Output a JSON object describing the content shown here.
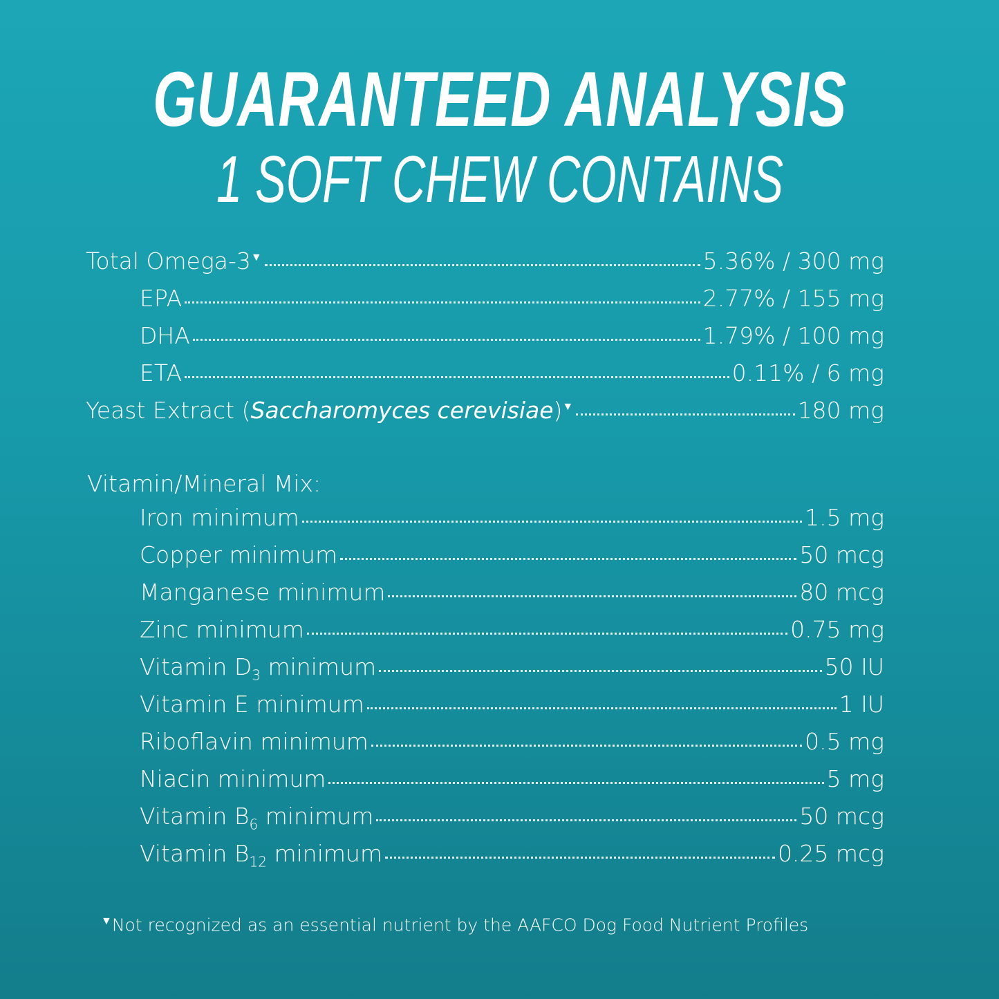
{
  "title": "GUARANTEED ANALYSIS",
  "subtitle": "1 SOFT CHEW CONTAINS",
  "colors": {
    "background_top": "#1ca6b6",
    "background_bottom": "#137d8b",
    "text": "#ffffff"
  },
  "marker_symbol": "▼",
  "group1": [
    {
      "label": "Total Omega-3",
      "marker": true,
      "value": "5.36% / 300 mg",
      "indent": false
    },
    {
      "label": "EPA",
      "value": "2.77% / 155 mg",
      "indent": true
    },
    {
      "label": "DHA",
      "value": "1.79% / 100 mg",
      "indent": true
    },
    {
      "label": "ETA",
      "value": "0.11% / 6 mg",
      "indent": true
    },
    {
      "label": "Yeast Extract (",
      "italic": "Saccharomyces cerevisiae",
      "label_after": ")",
      "marker": true,
      "value": "180 mg",
      "indent": false
    }
  ],
  "mix_heading": "Vitamin/Mineral Mix:",
  "group2": [
    {
      "label": "Iron minimum",
      "value": "1.5 mg",
      "indent": true
    },
    {
      "label": "Copper minimum",
      "value": "50 mcg",
      "indent": true
    },
    {
      "label": "Manganese minimum",
      "value": "80 mcg",
      "indent": true
    },
    {
      "label": "Zinc minimum",
      "value": "0.75 mg",
      "indent": true
    },
    {
      "label": "Vitamin D",
      "sub": "3",
      "label_after": " minimum",
      "value": "50 IU",
      "indent": true
    },
    {
      "label": "Vitamin E minimum",
      "value": "1 IU",
      "indent": true
    },
    {
      "label": "Riboflavin minimum",
      "value": "0.5 mg",
      "indent": true
    },
    {
      "label": "Niacin minimum",
      "value": "5 mg",
      "indent": true
    },
    {
      "label": "Vitamin B",
      "sub": "6",
      "label_after": " minimum",
      "value": "50 mcg",
      "indent": true
    },
    {
      "label": "Vitamin B",
      "sub": "12",
      "label_after": " minimum",
      "value": "0.25 mcg",
      "indent": true
    }
  ],
  "footnote": "Not recognized as an essential nutrient by the AAFCO Dog Food Nutrient Profiles"
}
